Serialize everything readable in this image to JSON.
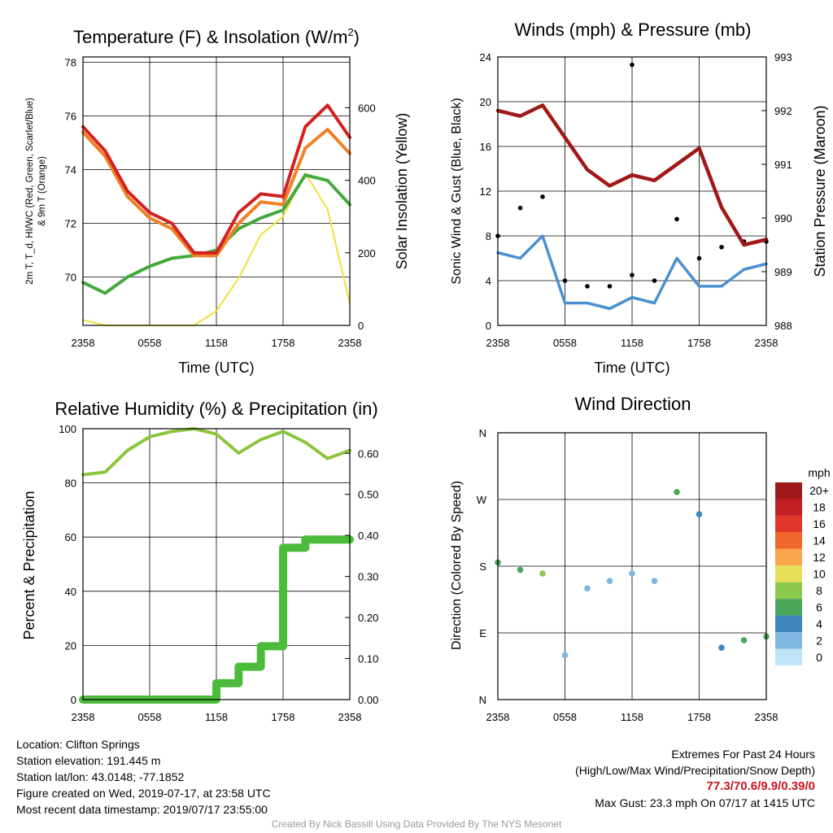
{
  "x_ticks": [
    "2358",
    "0558",
    "1158",
    "1758",
    "2358"
  ],
  "panels": {
    "temp": {
      "title": "Temperature (F) & Insolation (W/m²)",
      "xlabel": "Time (UTC)",
      "ylabel_left_1": "2m T, T_d, HI/WC (Red, Green, Scarlet/Blue)",
      "ylabel_left_2": "& 9m T (Orange)",
      "ylabel_right": "Solar Insolation (Yellow)",
      "yticks_left": [
        "70",
        "72",
        "74",
        "76",
        "78"
      ],
      "yticks_right": [
        "0",
        "200",
        "400",
        "600"
      ]
    },
    "winds": {
      "title": "Winds (mph) & Pressure (mb)",
      "xlabel": "Time (UTC)",
      "ylabel_left": "Sonic Wind & Gust (Blue, Black)",
      "ylabel_right": "Station Pressure (Maroon)",
      "yticks_left": [
        "0",
        "4",
        "8",
        "12",
        "16",
        "20",
        "24"
      ],
      "yticks_right": [
        "988",
        "989",
        "990",
        "991",
        "992",
        "993"
      ]
    },
    "rh": {
      "title": "Relative Humidity (%) & Precipitation (in)",
      "ylabel_left": "Percent & Precipitation",
      "yticks_left": [
        "0",
        "20",
        "40",
        "60",
        "80",
        "100"
      ],
      "yticks_right": [
        "0.00",
        "0.10",
        "0.20",
        "0.30",
        "0.40",
        "0.50",
        "0.60"
      ]
    },
    "dir": {
      "title": "Wind Direction",
      "ylabel_left": "Direction (Colored By Speed)",
      "yticks_left": [
        "N",
        "E",
        "S",
        "W",
        "N"
      ],
      "legend_title": "mph",
      "legend_labels": [
        "20+",
        "18",
        "16",
        "14",
        "12",
        "10",
        "8",
        "6",
        "4",
        "2",
        "0"
      ],
      "legend_colors": [
        "#9e1a1a",
        "#c21f24",
        "#e0352b",
        "#f0652a",
        "#f8a64b",
        "#e8df5a",
        "#8cc84b",
        "#4aa75a",
        "#3d86c0",
        "#7eb6e2",
        "#bfe3f7"
      ]
    }
  },
  "chart_data": [
    {
      "type": "line",
      "title": "Temperature (F) & Insolation (W/m²)",
      "xlabel": "Time (UTC)",
      "ylabel": "2m T, T_d, HI/WC (Red, Green, Scarlet/Blue) & 9m T (Orange)",
      "y2label": "Solar Insolation (Yellow)",
      "x": [
        "2358",
        "0158",
        "0358",
        "0558",
        "0758",
        "0958",
        "1158",
        "1358",
        "1558",
        "1758",
        "1958",
        "2158",
        "2358"
      ],
      "ylim": [
        68.2,
        78.2
      ],
      "y2lim": [
        0,
        740
      ],
      "series": [
        {
          "name": "2m T",
          "color": "#d42121",
          "axis": "left",
          "values": [
            75.6,
            74.7,
            73.2,
            72.4,
            72.0,
            70.9,
            70.9,
            72.4,
            73.1,
            73.0,
            75.6,
            76.4,
            75.2
          ]
        },
        {
          "name": "9m T",
          "color": "#f08024",
          "axis": "left",
          "values": [
            75.4,
            74.5,
            73.0,
            72.2,
            71.8,
            70.8,
            70.8,
            72.0,
            72.8,
            72.7,
            74.8,
            75.5,
            74.6
          ]
        },
        {
          "name": "T_d",
          "color": "#44a93c",
          "axis": "left",
          "values": [
            69.8,
            69.4,
            70.0,
            70.4,
            70.7,
            70.8,
            71.0,
            71.8,
            72.2,
            72.5,
            73.8,
            73.6,
            72.7
          ]
        },
        {
          "name": "Solar Insolation",
          "color": "#f2e03c",
          "axis": "right",
          "values": [
            15,
            0,
            0,
            0,
            0,
            0,
            40,
            130,
            250,
            300,
            420,
            320,
            60
          ]
        }
      ]
    },
    {
      "type": "line",
      "title": "Winds (mph) & Pressure (mb)",
      "xlabel": "Time (UTC)",
      "ylabel": "Sonic Wind & Gust (Blue, Black)",
      "y2label": "Station Pressure (Maroon)",
      "x": [
        "2358",
        "0158",
        "0358",
        "0558",
        "0758",
        "0958",
        "1158",
        "1358",
        "1558",
        "1758",
        "1958",
        "2158",
        "2358"
      ],
      "ylim": [
        0,
        24
      ],
      "y2lim": [
        988,
        993
      ],
      "series": [
        {
          "name": "Sonic Wind",
          "color": "#4a90d0",
          "axis": "left",
          "values": [
            6.5,
            6.0,
            8.0,
            2.0,
            2.0,
            1.5,
            2.5,
            2.0,
            6.0,
            3.5,
            3.5,
            5.0,
            5.5
          ]
        },
        {
          "name": "Gust",
          "color": "#000000",
          "axis": "left",
          "values": [
            8.0,
            10.5,
            11.5,
            4.0,
            3.5,
            3.5,
            4.5,
            4.0,
            9.5,
            6.0,
            7.0,
            7.5,
            7.5
          ]
        },
        {
          "name": "Station Pressure",
          "color": "#a01818",
          "axis": "right",
          "values": [
            992.0,
            991.9,
            992.1,
            991.5,
            990.9,
            990.6,
            990.8,
            990.7,
            991.0,
            991.3,
            990.2,
            989.5,
            989.6
          ]
        }
      ],
      "max_gust": 23.3
    },
    {
      "type": "line",
      "title": "Relative Humidity (%) & Precipitation (in)",
      "ylabel": "Percent & Precipitation",
      "x": [
        "2358",
        "0158",
        "0358",
        "0558",
        "0758",
        "0958",
        "1158",
        "1358",
        "1558",
        "1758",
        "1958",
        "2158",
        "2358"
      ],
      "ylim": [
        0,
        100
      ],
      "y2lim": [
        0,
        0.66
      ],
      "series": [
        {
          "name": "Relative Humidity",
          "color": "#8cc63f",
          "axis": "left",
          "values": [
            83,
            84,
            92,
            97,
            99,
            100,
            98,
            91,
            96,
            99,
            95,
            89,
            92
          ]
        },
        {
          "name": "Precipitation",
          "color": "#4cbb3c",
          "axis": "right",
          "values": [
            0,
            0,
            0,
            0,
            0,
            0,
            0.04,
            0.08,
            0.13,
            0.37,
            0.39,
            0.39,
            0.39
          ]
        }
      ]
    },
    {
      "type": "scatter",
      "title": "Wind Direction",
      "ylabel": "Direction (Colored By Speed)",
      "x": [
        "2358",
        "0158",
        "0358",
        "0558",
        "0758",
        "0958",
        "1158",
        "1358",
        "1558",
        "1758",
        "1958",
        "2158",
        "2358"
      ],
      "ylim": [
        0,
        360
      ],
      "series": [
        {
          "name": "Direction",
          "values": [
            185,
            175,
            170,
            60,
            150,
            160,
            170,
            160,
            280,
            250,
            70,
            80,
            85
          ]
        }
      ]
    }
  ],
  "footer": {
    "location": "Location: Clifton Springs",
    "elevation": "Station elevation: 191.445 m",
    "latlon": "Station lat/lon: 43.0148; -77.1852",
    "created": "Figure created on Wed, 2019-07-17, at 23:58 UTC",
    "recent": "Most recent data timestamp: 2019/07/17 23:55:00",
    "extremes_title": "Extremes For Past 24 Hours",
    "extremes_legend": "(High/Low/Max Wind/Precipitation/Snow Depth)",
    "extremes_values": "77.3/70.6/9.9/0.39/0",
    "max_gust": "Max Gust: 23.3 mph On 07/17 at 1415 UTC",
    "credit": "Created By Nick Bassill Using Data Provided By The NYS Mesonet"
  }
}
